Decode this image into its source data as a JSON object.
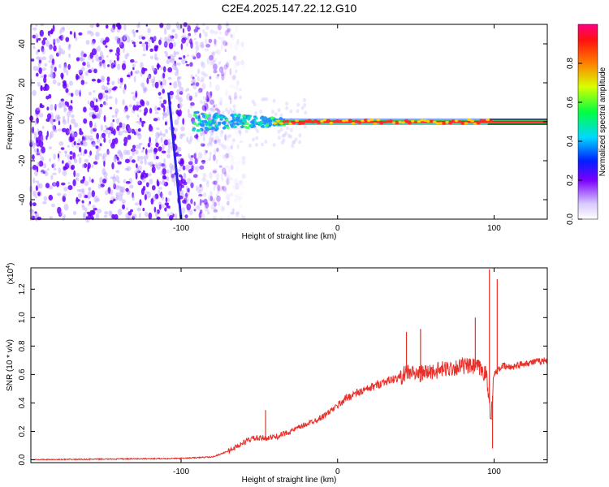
{
  "title": "C2E4.2025.147.22.12.G10",
  "chart_data": [
    {
      "type": "heatmap",
      "xlabel": "Height of straight line (km)",
      "ylabel": "Frequency (Hz)",
      "xlim": [
        -196,
        134
      ],
      "ylim": [
        -50,
        50
      ],
      "xticks": [
        -100,
        0,
        100
      ],
      "yticks": [
        -40,
        -20,
        0,
        20,
        40
      ],
      "colorbar": {
        "label": "Normalized spectral amplitude",
        "range": [
          0,
          1
        ],
        "ticks": [
          0.0,
          0.2,
          0.4,
          0.6,
          0.8
        ]
      },
      "features": {
        "noise_region_x": [
          -196,
          -70
        ],
        "diagonal_track": {
          "x_start": -108,
          "x_end": -100,
          "y_start": 15,
          "y_end": -50
        },
        "signal_line": {
          "x_start": -92,
          "x_end": 134,
          "frequency": 0
        }
      },
      "colors": {
        "noise": "#6a00ff",
        "signal": "#ff2020",
        "halo": "#1e90ff"
      }
    },
    {
      "type": "line",
      "xlabel": "Height of straight line (km)",
      "ylabel": "SNR (10 * v/v)",
      "y_exponent": "(x10",
      "y_exponent_power": "4",
      "y_exponent_close": ")",
      "xlim": [
        -196,
        134
      ],
      "ylim": [
        -0.02,
        1.35
      ],
      "xticks": [
        -100,
        0,
        100
      ],
      "yticks": [
        0.0,
        0.2,
        0.4,
        0.6,
        0.8,
        1.0,
        1.2
      ],
      "series": [
        {
          "color": "#e8302a",
          "x": [
            -196,
            -150,
            -100,
            -80,
            -70,
            -60,
            -55,
            -50,
            -40,
            -30,
            -20,
            -10,
            -5,
            0,
            5,
            10,
            20,
            30,
            40,
            45,
            50,
            60,
            70,
            80,
            90,
            95,
            98,
            100,
            105,
            110,
            120,
            134
          ],
          "values": [
            0.0,
            0.005,
            0.01,
            0.02,
            0.06,
            0.12,
            0.15,
            0.15,
            0.16,
            0.2,
            0.25,
            0.3,
            0.34,
            0.38,
            0.43,
            0.46,
            0.5,
            0.55,
            0.58,
            0.62,
            0.6,
            0.62,
            0.64,
            0.66,
            0.65,
            0.6,
            0.3,
            0.6,
            0.66,
            0.65,
            0.68,
            0.7
          ]
        }
      ],
      "spikes": [
        {
          "x": -46,
          "y": 0.35
        },
        {
          "x": 44,
          "y": 0.9
        },
        {
          "x": 53,
          "y": 0.92
        },
        {
          "x": 88,
          "y": 1.0
        },
        {
          "x": 97,
          "y": 1.34
        },
        {
          "x": 99,
          "y": 0.08
        },
        {
          "x": 102,
          "y": 1.27
        }
      ]
    }
  ]
}
